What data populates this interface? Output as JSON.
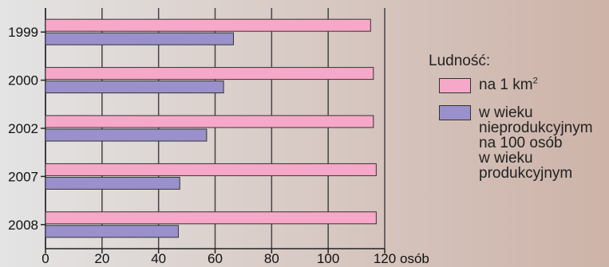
{
  "chart_data": {
    "type": "bar",
    "orientation": "horizontal",
    "categories": [
      "1999",
      "2000",
      "2002",
      "2007",
      "2008"
    ],
    "series": [
      {
        "name": "na 1 km²",
        "color": "#f7a8c8",
        "values": [
          115,
          116,
          116,
          117,
          117
        ]
      },
      {
        "name": "w wieku nieprodukcyjnym na 100 osób w wieku produkcyjnym",
        "color": "#9a90cc",
        "values": [
          66.5,
          63,
          57,
          47.5,
          47
        ]
      }
    ],
    "xlim": [
      0,
      120
    ],
    "xticks": [
      "0",
      "20",
      "40",
      "60",
      "80",
      "100",
      "120"
    ],
    "x_unit": "osób",
    "grid": true,
    "legend": {
      "title": "Ludność:",
      "position": "right",
      "items": [
        {
          "text": "na 1 km",
          "sup": "2"
        },
        {
          "text": "w wieku\nnieprodukcyjnym\nna 100 osób\nw wieku\nprodukcyjnym"
        }
      ]
    }
  }
}
